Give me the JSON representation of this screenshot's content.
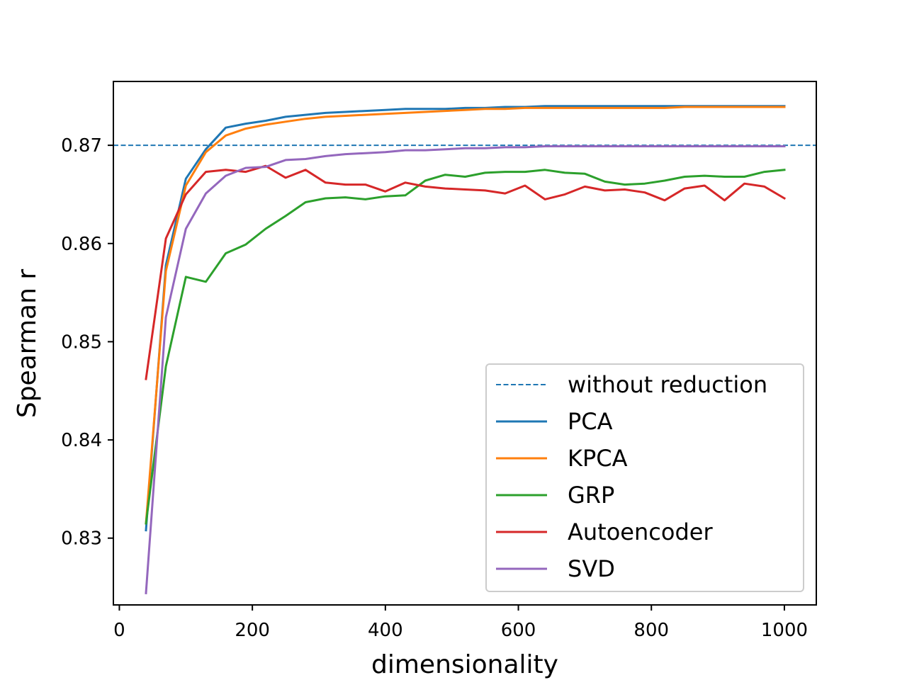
{
  "chart_data": {
    "type": "line",
    "title": "",
    "xlabel": "dimensionality",
    "ylabel": "Spearman r",
    "xlim": [
      -9,
      1048
    ],
    "ylim": [
      0.8232,
      0.8765
    ],
    "xticks": [
      0,
      200,
      400,
      600,
      800,
      1000
    ],
    "xtick_labels": [
      "0",
      "200",
      "400",
      "600",
      "800",
      "1000"
    ],
    "yticks": [
      0.83,
      0.84,
      0.85,
      0.86,
      0.87
    ],
    "ytick_labels": [
      "0.83",
      "0.84",
      "0.85",
      "0.86",
      "0.87"
    ],
    "grid": false,
    "legend_position": "lower-right",
    "baseline": {
      "name": "without reduction",
      "value": 0.87,
      "color": "#1f77b4",
      "style": "dashed"
    },
    "x": [
      40,
      70,
      100,
      130,
      160,
      190,
      220,
      250,
      280,
      310,
      340,
      370,
      400,
      430,
      460,
      490,
      520,
      550,
      580,
      610,
      640,
      670,
      700,
      730,
      760,
      790,
      820,
      850,
      880,
      910,
      940,
      970,
      1000
    ],
    "series": [
      {
        "name": "PCA",
        "color": "#1f77b4",
        "values": [
          0.8308,
          0.8578,
          0.8666,
          0.8696,
          0.8718,
          0.8722,
          0.8725,
          0.8729,
          0.8731,
          0.8733,
          0.8734,
          0.8735,
          0.8736,
          0.8737,
          0.8737,
          0.8737,
          0.8738,
          0.8738,
          0.8739,
          0.8739,
          0.874,
          0.874,
          0.874,
          0.874,
          0.874,
          0.874,
          0.874,
          0.874,
          0.874,
          0.874,
          0.874,
          0.874,
          0.874
        ]
      },
      {
        "name": "KPCA",
        "color": "#ff7f0e",
        "values": [
          0.8315,
          0.8572,
          0.8659,
          0.8693,
          0.871,
          0.8717,
          0.8721,
          0.8724,
          0.8727,
          0.8729,
          0.873,
          0.8731,
          0.8732,
          0.8733,
          0.8734,
          0.8735,
          0.8736,
          0.8737,
          0.8737,
          0.8738,
          0.8738,
          0.8738,
          0.8738,
          0.8738,
          0.8738,
          0.8738,
          0.8738,
          0.8739,
          0.8739,
          0.8739,
          0.8739,
          0.8739,
          0.8739
        ]
      },
      {
        "name": "GRP",
        "color": "#2ca02c",
        "values": [
          0.8315,
          0.8475,
          0.8566,
          0.8561,
          0.859,
          0.8599,
          0.8615,
          0.8628,
          0.8642,
          0.8646,
          0.8647,
          0.8645,
          0.8648,
          0.8649,
          0.8664,
          0.867,
          0.8668,
          0.8672,
          0.8673,
          0.8673,
          0.8675,
          0.8672,
          0.8671,
          0.8663,
          0.866,
          0.8661,
          0.8664,
          0.8668,
          0.8669,
          0.8668,
          0.8668,
          0.8673,
          0.8675
        ]
      },
      {
        "name": "Autoencoder",
        "color": "#d62728",
        "values": [
          0.8462,
          0.8605,
          0.865,
          0.8673,
          0.8675,
          0.8673,
          0.8679,
          0.8667,
          0.8675,
          0.8662,
          0.866,
          0.866,
          0.8653,
          0.8662,
          0.8658,
          0.8656,
          0.8655,
          0.8654,
          0.8651,
          0.8659,
          0.8645,
          0.865,
          0.8658,
          0.8654,
          0.8655,
          0.8652,
          0.8644,
          0.8656,
          0.8659,
          0.8644,
          0.8661,
          0.8658,
          0.8646
        ]
      },
      {
        "name": "SVD",
        "color": "#9467bd",
        "values": [
          0.8244,
          0.8525,
          0.8615,
          0.8651,
          0.8669,
          0.8677,
          0.8678,
          0.8685,
          0.8686,
          0.8689,
          0.8691,
          0.8692,
          0.8693,
          0.8695,
          0.8695,
          0.8696,
          0.8697,
          0.8697,
          0.8698,
          0.8698,
          0.8699,
          0.8699,
          0.8699,
          0.8699,
          0.8699,
          0.8699,
          0.8699,
          0.8699,
          0.8699,
          0.8699,
          0.8699,
          0.8699,
          0.8699
        ]
      }
    ]
  }
}
